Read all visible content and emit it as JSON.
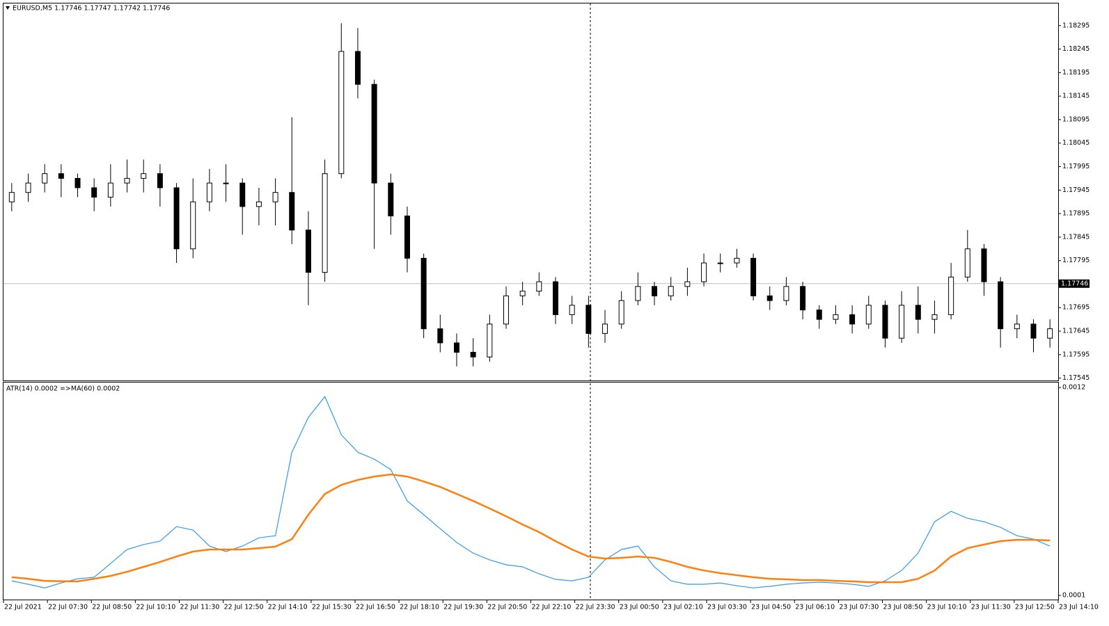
{
  "chart_data": [
    {
      "type": "candlestick",
      "title": "EURUSD,M5  1.17746 1.17747 1.17742 1.17746",
      "open": [
        1.1792,
        1.1794,
        1.1796,
        1.1798,
        1.1797,
        1.1795,
        1.1793,
        1.1796,
        1.1797,
        1.1798,
        1.1795,
        1.1782,
        1.1792,
        1.1796,
        1.1796,
        1.1791,
        1.1792,
        1.1794,
        1.1786,
        1.1777,
        1.1798,
        1.1824,
        1.1817,
        1.1796,
        1.1789,
        1.178,
        1.1765,
        1.1762,
        1.176,
        1.1759,
        1.1766,
        1.1772,
        1.1773,
        1.1775,
        1.1768,
        1.177,
        1.1764,
        1.1766,
        1.1771,
        1.1774,
        1.1772,
        1.1774,
        1.1775,
        1.1779,
        1.1779,
        1.178,
        1.1772,
        1.1771,
        1.1774,
        1.1769,
        1.1767,
        1.1768,
        1.1766,
        1.177,
        1.1763,
        1.177,
        1.1767,
        1.1768,
        1.1776,
        1.1782,
        1.1775,
        1.1765,
        1.1766,
        1.1763
      ],
      "high": [
        1.1796,
        1.1798,
        1.18,
        1.18,
        1.1798,
        1.1797,
        1.18,
        1.1801,
        1.1801,
        1.18,
        1.1796,
        1.1797,
        1.1799,
        1.18,
        1.1797,
        1.1795,
        1.1797,
        1.181,
        1.179,
        1.1801,
        1.183,
        1.1829,
        1.1818,
        1.1798,
        1.1791,
        1.1781,
        1.1768,
        1.1764,
        1.1763,
        1.1768,
        1.1774,
        1.1775,
        1.1777,
        1.1776,
        1.1772,
        1.1772,
        1.1769,
        1.1773,
        1.1777,
        1.1775,
        1.1776,
        1.1778,
        1.1781,
        1.1781,
        1.1782,
        1.1781,
        1.1774,
        1.1776,
        1.1775,
        1.177,
        1.177,
        1.177,
        1.1772,
        1.1771,
        1.1773,
        1.1774,
        1.1771,
        1.1779,
        1.1786,
        1.1783,
        1.1776,
        1.1768,
        1.1767,
        1.1767
      ],
      "low": [
        1.179,
        1.1792,
        1.1794,
        1.1793,
        1.1793,
        1.179,
        1.1791,
        1.1794,
        1.1794,
        1.1791,
        1.1779,
        1.178,
        1.179,
        1.1792,
        1.1785,
        1.1787,
        1.1787,
        1.1783,
        1.177,
        1.1775,
        1.1797,
        1.1814,
        1.1782,
        1.1785,
        1.1777,
        1.1763,
        1.176,
        1.1757,
        1.1757,
        1.1758,
        1.1765,
        1.177,
        1.1772,
        1.1766,
        1.1766,
        1.1761,
        1.1762,
        1.1765,
        1.177,
        1.177,
        1.1771,
        1.1772,
        1.1774,
        1.1777,
        1.1778,
        1.1771,
        1.1769,
        1.177,
        1.1767,
        1.1765,
        1.1766,
        1.1764,
        1.1765,
        1.1761,
        1.1762,
        1.1764,
        1.1764,
        1.1767,
        1.1775,
        1.1772,
        1.1761,
        1.1763,
        1.176,
        1.1761
      ],
      "close": [
        1.1794,
        1.1796,
        1.1798,
        1.1797,
        1.1795,
        1.1793,
        1.1796,
        1.1797,
        1.1798,
        1.1795,
        1.1782,
        1.1792,
        1.1796,
        1.1796,
        1.1791,
        1.1792,
        1.1794,
        1.1786,
        1.1777,
        1.1798,
        1.1824,
        1.1817,
        1.1796,
        1.1789,
        1.178,
        1.1765,
        1.1762,
        1.176,
        1.1759,
        1.1766,
        1.1772,
        1.1773,
        1.1775,
        1.1768,
        1.177,
        1.1764,
        1.1766,
        1.1771,
        1.1774,
        1.1772,
        1.1774,
        1.1775,
        1.1779,
        1.1779,
        1.178,
        1.1772,
        1.1771,
        1.1774,
        1.1769,
        1.1767,
        1.1768,
        1.1766,
        1.177,
        1.1763,
        1.177,
        1.1767,
        1.1768,
        1.1776,
        1.1782,
        1.1775,
        1.1765,
        1.1766,
        1.1763,
        1.1765
      ],
      "color": "#000000",
      "current_price": 1.17746,
      "ylim": [
        1.1754,
        1.18342
      ],
      "yticks": [
        1.18295,
        1.18245,
        1.18195,
        1.18145,
        1.18095,
        1.18045,
        1.17995,
        1.17945,
        1.17895,
        1.17845,
        1.17795,
        1.17695,
        1.17645,
        1.17595,
        1.17545
      ]
    },
    {
      "type": "line",
      "title": "ATR(14) 0.0002  =>MA(60) 0.0002",
      "series": [
        {
          "color": "#3399ee",
          "values": [
            0.000177,
            0.000159,
            0.00014,
            0.000166,
            0.000188,
            0.000196,
            0.000269,
            0.000343,
            0.000369,
            0.000387,
            0.000464,
            0.000446,
            0.000361,
            0.000332,
            0.000361,
            0.000405,
            0.000416,
            0.000858,
            0.001042,
            0.001152,
            0.00095,
            0.000858,
            0.000821,
            0.000766,
            0.0006,
            0.000527,
            0.000453,
            0.00038,
            0.000324,
            0.000288,
            0.000262,
            0.000251,
            0.000214,
            0.000185,
            0.000177,
            0.000196,
            0.000288,
            0.000343,
            0.000361,
            0.000251,
            0.000177,
            0.000159,
            0.000159,
            0.000166,
            0.000151,
            0.00014,
            0.000148,
            0.000159,
            0.000166,
            0.00017,
            0.000166,
            0.000159,
            0.000148,
            0.000177,
            0.000232,
            0.000324,
            0.00049,
            0.000545,
            0.000508,
            0.00049,
            0.00046,
            0.000416,
            0.000398,
            0.000361
          ]
        },
        {
          "color": "#ff7f0e",
          "values": [
            0.000196,
            0.000188,
            0.000177,
            0.000175,
            0.000174,
            0.000188,
            0.000203,
            0.000225,
            0.000251,
            0.000277,
            0.000306,
            0.000332,
            0.000343,
            0.000343,
            0.000343,
            0.00035,
            0.000358,
            0.000398,
            0.000527,
            0.000637,
            0.000685,
            0.000711,
            0.000729,
            0.00074,
            0.000729,
            0.000703,
            0.000674,
            0.000637,
            0.0006,
            0.00056,
            0.000519,
            0.000475,
            0.000435,
            0.000387,
            0.000343,
            0.000306,
            0.000295,
            0.000299,
            0.000306,
            0.000299,
            0.000277,
            0.000251,
            0.000232,
            0.000218,
            0.000207,
            0.000196,
            0.000188,
            0.000185,
            0.000181,
            0.000181,
            0.000177,
            0.000174,
            0.00017,
            0.00017,
            0.00017,
            0.000188,
            0.000232,
            0.000306,
            0.00035,
            0.000369,
            0.000387,
            0.000394,
            0.000394,
            0.000391
          ]
        }
      ],
      "ylim": [
        7.8e-05,
        0.00123
      ],
      "yticks": [
        0.0012,
        0.0001
      ],
      "xlim": [
        0,
        64
      ],
      "xticks": [
        {
          "value": 0,
          "label": "22 Jul 2021"
        },
        {
          "value": 2.667,
          "label": "22 Jul 07:30"
        },
        {
          "value": 5.333,
          "label": "22 Jul 08:50"
        },
        {
          "value": 8,
          "label": "22 Jul 10:10"
        },
        {
          "value": 10.667,
          "label": "22 Jul 11:30"
        },
        {
          "value": 13.333,
          "label": "22 Jul 12:50"
        },
        {
          "value": 16,
          "label": "22 Jul 14:10"
        },
        {
          "value": 18.667,
          "label": "22 Jul 15:30"
        },
        {
          "value": 21.333,
          "label": "22 Jul 16:50"
        },
        {
          "value": 24,
          "label": "22 Jul 18:10"
        },
        {
          "value": 26.667,
          "label": "22 Jul 19:30"
        },
        {
          "value": 29.333,
          "label": "22 Jul 20:50"
        },
        {
          "value": 32,
          "label": "22 Jul 22:10"
        },
        {
          "value": 34.667,
          "label": "22 Jul 23:30"
        },
        {
          "value": 37.333,
          "label": "23 Jul 00:50"
        },
        {
          "value": 40,
          "label": "23 Jul 02:10"
        },
        {
          "value": 42.667,
          "label": "23 Jul 03:30"
        },
        {
          "value": 45.333,
          "label": "23 Jul 04:50"
        },
        {
          "value": 48,
          "label": "23 Jul 06:10"
        },
        {
          "value": 50.667,
          "label": "23 Jul 07:30"
        },
        {
          "value": 53.333,
          "label": "23 Jul 08:50"
        },
        {
          "value": 56,
          "label": "23 Jul 10:10"
        },
        {
          "value": 58.667,
          "label": "23 Jul 11:30"
        },
        {
          "value": 61.333,
          "label": "23 Jul 12:50"
        },
        {
          "value": 64,
          "label": "23 Jul 14:10"
        }
      ]
    }
  ]
}
